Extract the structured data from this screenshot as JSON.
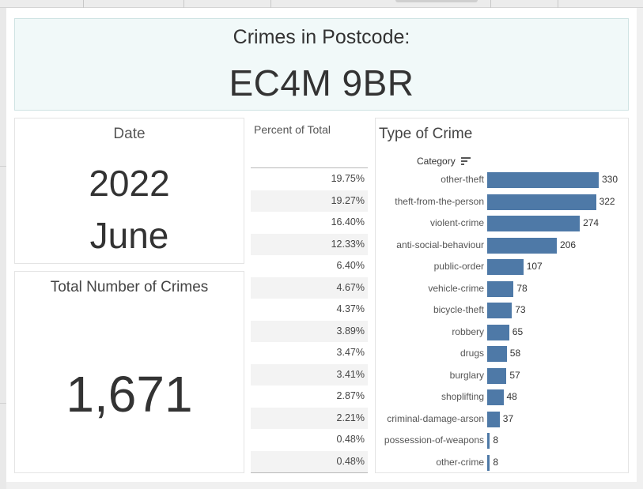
{
  "header": {
    "title": "Crimes in Postcode:",
    "postcode": "EC4M 9BR"
  },
  "date": {
    "label": "Date",
    "year": "2022",
    "month": "June"
  },
  "total": {
    "label": "Total Number of Crimes",
    "value": "1,671"
  },
  "percent": {
    "label": "Percent of Total"
  },
  "type_chart": {
    "label": "Type of Crime",
    "category_header": "Category",
    "sort_icon": "sort-descending-icon"
  },
  "colors": {
    "bar": "#4e79a7",
    "header_bg": "#f1f9f9"
  },
  "chart_data": {
    "type": "bar",
    "orientation": "horizontal",
    "title": "Type of Crime",
    "categories": [
      "other-theft",
      "theft-from-the-person",
      "violent-crime",
      "anti-social-behaviour",
      "public-order",
      "vehicle-crime",
      "bicycle-theft",
      "robbery",
      "drugs",
      "burglary",
      "shoplifting",
      "criminal-damage-arson",
      "possession-of-weapons",
      "other-crime"
    ],
    "values": [
      330,
      322,
      274,
      206,
      107,
      78,
      73,
      65,
      58,
      57,
      48,
      37,
      8,
      8
    ],
    "percent_of_total": [
      "19.75%",
      "19.27%",
      "16.40%",
      "12.33%",
      "6.40%",
      "4.67%",
      "4.37%",
      "3.89%",
      "3.47%",
      "3.41%",
      "2.87%",
      "2.21%",
      "0.48%",
      "0.48%"
    ],
    "xlim": [
      0,
      330
    ]
  }
}
